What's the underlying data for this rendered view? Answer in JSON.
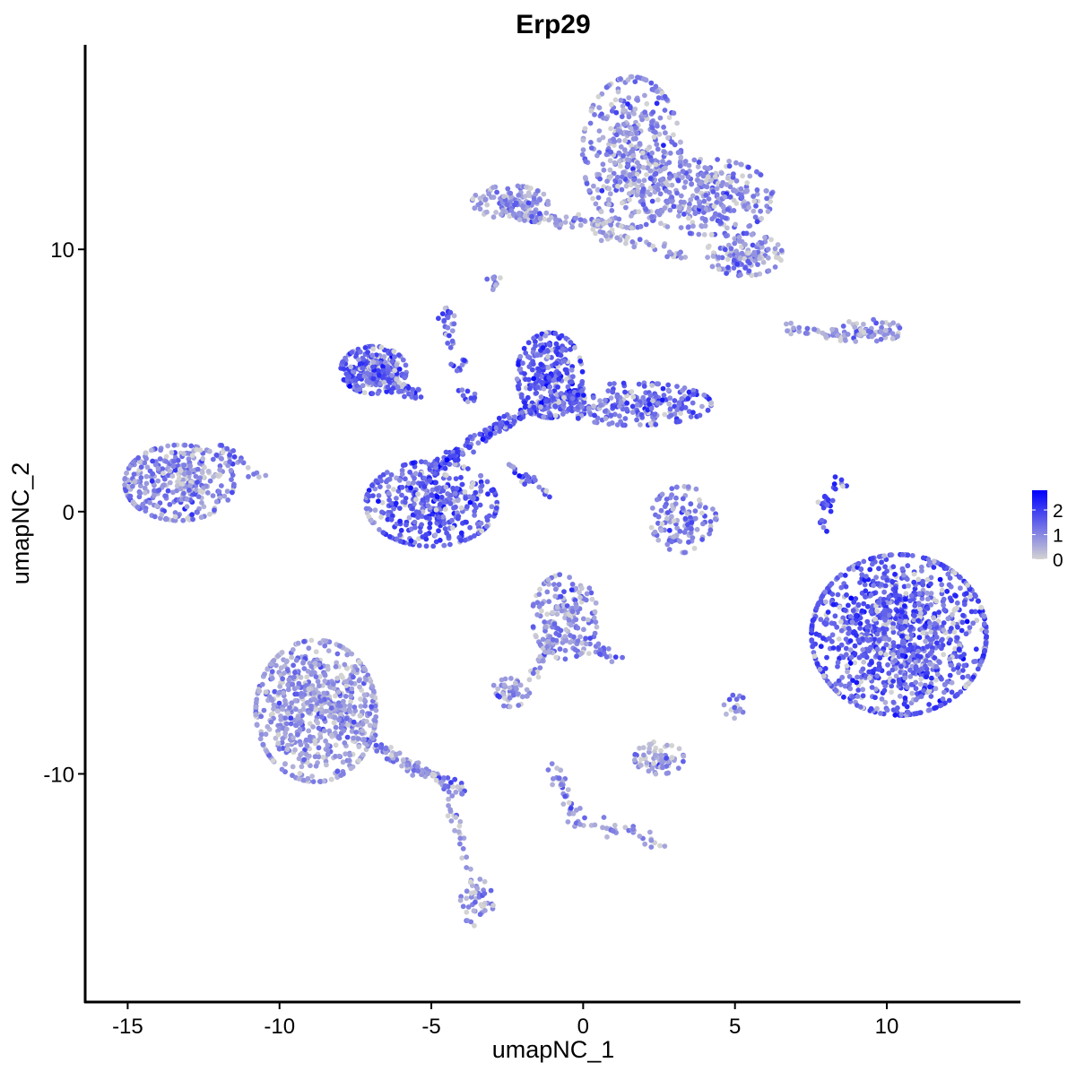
{
  "chart_data": {
    "type": "scatter",
    "title": "Erp29",
    "xlabel": "umapNC_1",
    "ylabel": "umapNC_2",
    "xlim": [
      -16.4,
      14.4
    ],
    "ylim": [
      -18.7,
      17.8
    ],
    "xticks": [
      -15,
      -10,
      -5,
      0,
      5,
      10
    ],
    "yticks": [
      -10,
      0,
      10
    ],
    "xtick_labels": [
      "-15",
      "-10",
      "-5",
      "0",
      "5",
      "10"
    ],
    "ytick_labels": [
      "-10",
      "0",
      "10"
    ],
    "grid": false,
    "color_scale": {
      "low": "#d3d3d3",
      "high": "#0000ff",
      "range": [
        0,
        2.8
      ],
      "ticks": [
        0,
        1,
        2
      ],
      "tick_labels": [
        "0",
        "1",
        "2"
      ]
    },
    "legend_position": "right",
    "clusters": [
      {
        "center": [
          1.6,
          13.7
        ],
        "spread": [
          0.9,
          1.6
        ],
        "n": 420,
        "mean_expr": 0.9
      },
      {
        "center": [
          4.1,
          12.0
        ],
        "spread": [
          1.2,
          0.8
        ],
        "n": 300,
        "mean_expr": 1.0
      },
      {
        "center": [
          5.3,
          9.8
        ],
        "spread": [
          0.7,
          0.45
        ],
        "n": 130,
        "mean_expr": 0.9
      },
      {
        "center": [
          -2.4,
          11.8
        ],
        "spread": [
          0.7,
          0.35
        ],
        "n": 120,
        "mean_expr": 0.8
      },
      {
        "center": [
          -6.9,
          5.4
        ],
        "spread": [
          0.6,
          0.5
        ],
        "n": 260,
        "mean_expr": 1.6
      },
      {
        "center": [
          -5.0,
          0.3
        ],
        "spread": [
          1.2,
          0.9
        ],
        "n": 420,
        "mean_expr": 1.6
      },
      {
        "center": [
          -1.1,
          5.2
        ],
        "spread": [
          0.6,
          0.9
        ],
        "n": 280,
        "mean_expr": 1.6
      },
      {
        "center": [
          1.7,
          4.1
        ],
        "spread": [
          1.4,
          0.45
        ],
        "n": 260,
        "mean_expr": 1.4
      },
      {
        "center": [
          -13.3,
          1.1
        ],
        "spread": [
          1.0,
          0.8
        ],
        "n": 360,
        "mean_expr": 1.0
      },
      {
        "center": [
          10.4,
          -4.7
        ],
        "spread": [
          1.6,
          1.7
        ],
        "n": 1100,
        "mean_expr": 1.6
      },
      {
        "center": [
          -8.8,
          -7.6
        ],
        "spread": [
          1.1,
          1.5
        ],
        "n": 650,
        "mean_expr": 0.8
      },
      {
        "center": [
          3.3,
          -0.3
        ],
        "spread": [
          0.6,
          0.7
        ],
        "n": 120,
        "mean_expr": 1.1
      },
      {
        "center": [
          -0.6,
          -4.0
        ],
        "spread": [
          0.6,
          0.9
        ],
        "n": 180,
        "mean_expr": 0.9
      },
      {
        "center": [
          -2.4,
          -6.9
        ],
        "spread": [
          0.35,
          0.3
        ],
        "n": 50,
        "mean_expr": 0.9
      },
      {
        "center": [
          2.5,
          -9.4
        ],
        "spread": [
          0.45,
          0.35
        ],
        "n": 70,
        "mean_expr": 0.8
      },
      {
        "center": [
          9.4,
          6.9
        ],
        "spread": [
          0.6,
          0.25
        ],
        "n": 50,
        "mean_expr": 0.9
      },
      {
        "center": [
          -3.5,
          -14.9
        ],
        "spread": [
          0.3,
          0.5
        ],
        "n": 40,
        "mean_expr": 0.9
      },
      {
        "center": [
          5.0,
          -7.4
        ],
        "spread": [
          0.2,
          0.3
        ],
        "n": 15,
        "mean_expr": 0.8
      },
      {
        "center": [
          -2.9,
          8.8
        ],
        "spread": [
          0.15,
          0.2
        ],
        "n": 12,
        "mean_expr": 0.9
      },
      {
        "center": [
          -4.5,
          7.4
        ],
        "spread": [
          0.15,
          0.2
        ],
        "n": 15,
        "mean_expr": 1.6
      }
    ],
    "trajectories": [
      {
        "path": [
          [
            -2.4,
            11.3
          ],
          [
            -1,
            11.1
          ],
          [
            1,
            11.0
          ]
        ],
        "n": 80,
        "mean_expr": 0.8
      },
      {
        "path": [
          [
            0.5,
            10.6
          ],
          [
            2,
            10.2
          ],
          [
            3.3,
            9.7
          ]
        ],
        "n": 40,
        "mean_expr": 0.7
      },
      {
        "path": [
          [
            -5.0,
            1.5
          ],
          [
            -3.5,
            2.8
          ],
          [
            -1.5,
            4.0
          ],
          [
            0,
            4.5
          ]
        ],
        "n": 200,
        "mean_expr": 1.6
      },
      {
        "path": [
          [
            -5.5,
            4.5
          ],
          [
            -6.5,
            5.0
          ]
        ],
        "n": 50,
        "mean_expr": 1.5
      },
      {
        "path": [
          [
            -4.5,
            7.0
          ],
          [
            -3.6,
            4.0
          ]
        ],
        "n": 30,
        "mean_expr": 1.6
      },
      {
        "path": [
          [
            -2.4,
            1.8
          ],
          [
            -1.3,
            0.7
          ]
        ],
        "n": 25,
        "mean_expr": 1.5
      },
      {
        "path": [
          [
            -9.8,
            -6.0
          ],
          [
            -6.5,
            -9.2
          ],
          [
            -4.0,
            -10.7
          ]
        ],
        "n": 200,
        "mean_expr": 0.9
      },
      {
        "path": [
          [
            -4.6,
            -10.8
          ],
          [
            -4.0,
            -12.5
          ],
          [
            -3.6,
            -14.5
          ]
        ],
        "n": 30,
        "mean_expr": 0.8
      },
      {
        "path": [
          [
            -0.9,
            -4.8
          ],
          [
            -1.7,
            -6.3
          ]
        ],
        "n": 30,
        "mean_expr": 0.9
      },
      {
        "path": [
          [
            -1.0,
            -9.6
          ],
          [
            -0.3,
            -11.8
          ],
          [
            1.5,
            -12.2
          ],
          [
            2.5,
            -12.7
          ]
        ],
        "n": 70,
        "mean_expr": 0.9
      },
      {
        "path": [
          [
            6.7,
            7.0
          ],
          [
            8.8,
            6.7
          ],
          [
            10.0,
            6.9
          ]
        ],
        "n": 50,
        "mean_expr": 0.8
      },
      {
        "path": [
          [
            8.5,
            1.2
          ],
          [
            8.0,
            0.3
          ],
          [
            7.8,
            -0.7
          ]
        ],
        "n": 30,
        "mean_expr": 1.8
      },
      {
        "path": [
          [
            0,
            -5.0
          ],
          [
            1.1,
            -5.6
          ]
        ],
        "n": 25,
        "mean_expr": 1.0
      },
      {
        "path": [
          [
            -12.0,
            2.5
          ],
          [
            -10.8,
            1.4
          ]
        ],
        "n": 25,
        "mean_expr": 0.9
      }
    ]
  }
}
